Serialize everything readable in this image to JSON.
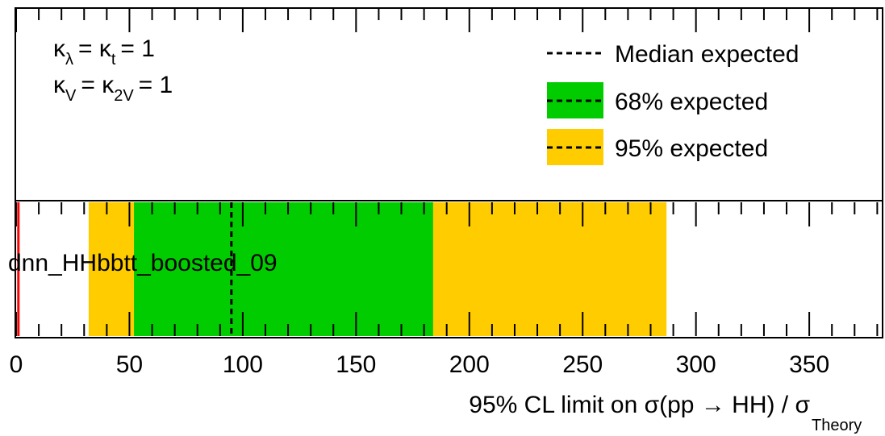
{
  "chart_data": {
    "type": "bar",
    "orientation": "horizontal",
    "categories": [
      "dnn_HHbbtt_boosted_09"
    ],
    "median_expected": 95,
    "band_68": [
      52,
      184
    ],
    "band_95": [
      32,
      287
    ],
    "reference_line": 1,
    "xlim": [
      0,
      382
    ],
    "xticks": [
      0,
      50,
      100,
      150,
      200,
      250,
      300,
      350
    ],
    "xlabel": "95% CL limit on σ(pp → HH) / σ",
    "xlabel_sub": "Theory",
    "legend_placement": "top-right",
    "legend": [
      {
        "label": "Median expected",
        "style": "dashed"
      },
      {
        "label": "68% expected",
        "style": "band",
        "color": "#00cc00"
      },
      {
        "label": "95% expected",
        "style": "band",
        "color": "#ffcc00"
      }
    ],
    "colors": {
      "band_68": "#00cc00",
      "band_95": "#ffcc00",
      "reference_line": "#ff0000"
    },
    "annotations": [
      {
        "sym": "κ",
        "sub1": "λ",
        "mid": "= κ",
        "sub2": "t",
        "tail": "= 1"
      },
      {
        "sym": "κ",
        "sub1": "V",
        "mid": "= κ",
        "sub2": "2V",
        "tail": "= 1"
      }
    ]
  }
}
